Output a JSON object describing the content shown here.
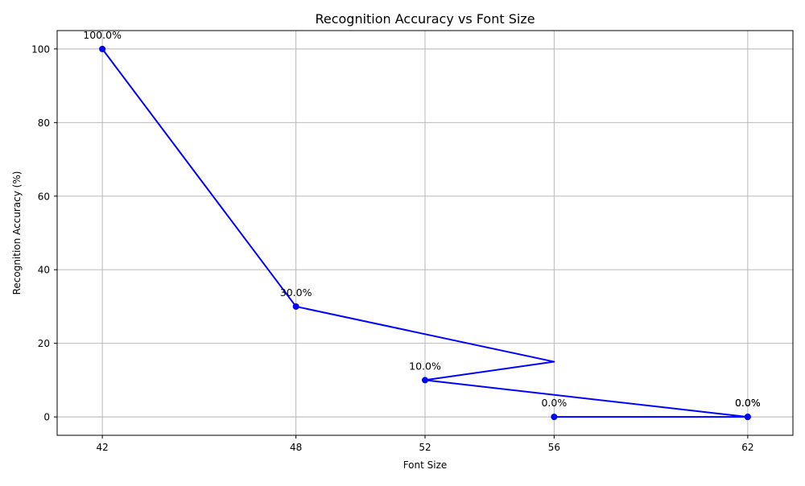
{
  "chart_data": {
    "type": "line",
    "title": "Recognition Accuracy vs Font Size",
    "xlabel": "Font Size",
    "ylabel": "Recognition Accuracy (%)",
    "x_ticks": [
      42,
      48,
      52,
      56,
      62
    ],
    "y_ticks": [
      0,
      20,
      40,
      60,
      80,
      100
    ],
    "xlim": [
      40.6,
      63.4
    ],
    "ylim": [
      -5,
      105
    ],
    "grid": true,
    "series": [
      {
        "color": "#0000ff",
        "marker": "circle",
        "points": [
          {
            "x": 42,
            "y": 100,
            "label": "100.0%"
          },
          {
            "x": 48,
            "y": 30,
            "label": "30.0%"
          },
          {
            "x": 56,
            "y": 15,
            "label": ""
          },
          {
            "x": 52,
            "y": 10,
            "label": "10.0%"
          },
          {
            "x": 62,
            "y": 0,
            "label": "0.0%"
          },
          {
            "x": 56,
            "y": 0,
            "label": "0.0%"
          },
          {
            "x": 62,
            "y": 0,
            "label": "0.0%"
          }
        ]
      }
    ]
  }
}
